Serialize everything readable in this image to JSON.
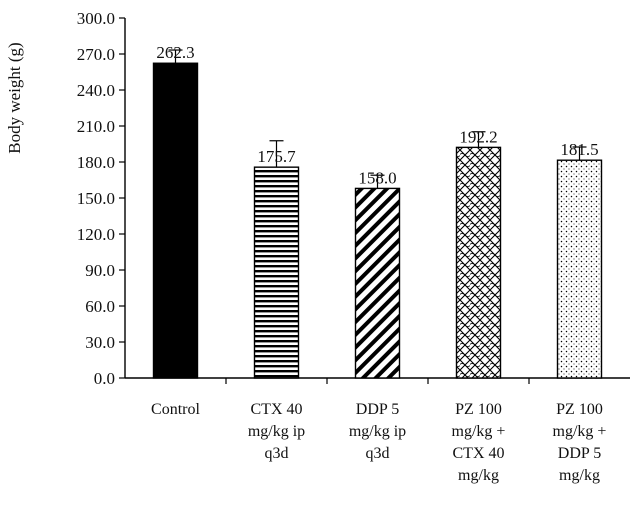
{
  "chart_data": {
    "type": "bar",
    "ylabel": "Body weight (g)",
    "xlabel": "",
    "title": "",
    "ylim": [
      0,
      300
    ],
    "ytick_values": [
      0,
      30,
      60,
      90,
      120,
      150,
      180,
      210,
      240,
      270,
      300
    ],
    "ytick_labels": [
      "0.0",
      "30.0",
      "60.0",
      "90.0",
      "120.0",
      "150.0",
      "180.0",
      "210.0",
      "240.0",
      "270.0",
      "300.0"
    ],
    "grid": false,
    "categories": [
      [
        "Control"
      ],
      [
        "CTX 40",
        "mg/kg ip",
        "q3d"
      ],
      [
        "DDP 5",
        "mg/kg ip",
        "q3d"
      ],
      [
        "PZ 100",
        "mg/kg +",
        "CTX 40",
        "mg/kg"
      ],
      [
        "PZ 100",
        "mg/kg +",
        "DDP 5",
        "mg/kg"
      ]
    ],
    "values": [
      262.3,
      175.7,
      158.0,
      192.2,
      181.5
    ],
    "value_labels": [
      "262.3",
      "175.7",
      "158.0",
      "192.2",
      "181.5"
    ],
    "error_plus": [
      11,
      22,
      11,
      13,
      11
    ],
    "patterns": [
      "solid-black",
      "horizontal-stripes",
      "diagonal-stripes",
      "crosshatch-wave",
      "dots"
    ]
  }
}
